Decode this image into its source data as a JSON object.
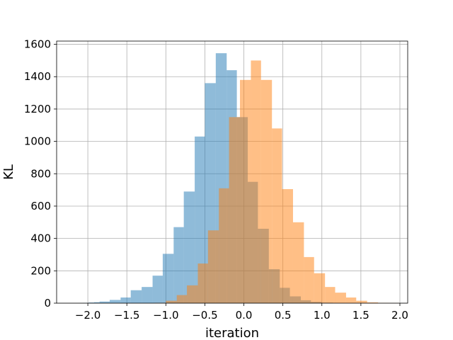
{
  "chart_data": {
    "type": "bar",
    "xlabel": "iteration",
    "ylabel": "KL",
    "xlim": [
      -2.4,
      2.1
    ],
    "ylim": [
      0,
      1620
    ],
    "grid": true,
    "x_ticks": [
      -2.0,
      -1.5,
      -1.0,
      -0.5,
      0.0,
      0.5,
      1.0,
      1.5,
      2.0
    ],
    "x_tick_labels": [
      "−2.0",
      "−1.5",
      "−1.0",
      "−0.5",
      "0.0",
      "0.5",
      "1.0",
      "1.5",
      "2.0"
    ],
    "y_ticks": [
      0,
      200,
      400,
      600,
      800,
      1000,
      1200,
      1400,
      1600
    ],
    "y_tick_labels": [
      "0",
      "200",
      "400",
      "600",
      "800",
      "1000",
      "1200",
      "1400",
      "1600"
    ],
    "series": [
      {
        "color": "#1f77b4",
        "opacity": 0.5,
        "bins": [
          [
            -2.13,
            -2.06,
            1
          ],
          [
            -2.06,
            -1.99,
            2
          ],
          [
            -1.99,
            -1.92,
            4
          ],
          [
            -1.92,
            -1.85,
            6
          ],
          [
            -1.85,
            -1.72,
            10
          ],
          [
            -1.72,
            -1.58,
            20
          ],
          [
            -1.58,
            -1.45,
            35
          ],
          [
            -1.45,
            -1.31,
            80
          ],
          [
            -1.31,
            -1.17,
            100
          ],
          [
            -1.17,
            -1.04,
            170
          ],
          [
            -1.04,
            -0.9,
            305
          ],
          [
            -0.9,
            -0.77,
            470
          ],
          [
            -0.77,
            -0.63,
            690
          ],
          [
            -0.63,
            -0.5,
            1030
          ],
          [
            -0.5,
            -0.36,
            1360
          ],
          [
            -0.36,
            -0.22,
            1545
          ],
          [
            -0.22,
            -0.09,
            1440
          ],
          [
            -0.09,
            0.05,
            1150
          ],
          [
            0.05,
            0.18,
            750
          ],
          [
            0.18,
            0.32,
            460
          ],
          [
            0.32,
            0.46,
            210
          ],
          [
            0.46,
            0.59,
            95
          ],
          [
            0.59,
            0.73,
            42
          ],
          [
            0.73,
            0.86,
            18
          ],
          [
            0.86,
            1.0,
            8
          ],
          [
            1.0,
            1.14,
            3
          ]
        ]
      },
      {
        "color": "#ff7f0e",
        "opacity": 0.5,
        "bins": [
          [
            -1.14,
            -1.0,
            2
          ],
          [
            -1.0,
            -0.86,
            15
          ],
          [
            -0.86,
            -0.73,
            50
          ],
          [
            -0.73,
            -0.59,
            110
          ],
          [
            -0.59,
            -0.46,
            245
          ],
          [
            -0.46,
            -0.32,
            450
          ],
          [
            -0.32,
            -0.19,
            710
          ],
          [
            -0.19,
            -0.05,
            1150
          ],
          [
            -0.05,
            0.09,
            1380
          ],
          [
            0.09,
            0.22,
            1500
          ],
          [
            0.22,
            0.36,
            1380
          ],
          [
            0.36,
            0.49,
            1080
          ],
          [
            0.49,
            0.63,
            705
          ],
          [
            0.63,
            0.77,
            500
          ],
          [
            0.77,
            0.9,
            285
          ],
          [
            0.9,
            1.04,
            185
          ],
          [
            1.04,
            1.17,
            100
          ],
          [
            1.17,
            1.31,
            65
          ],
          [
            1.31,
            1.44,
            35
          ],
          [
            1.44,
            1.58,
            15
          ],
          [
            1.58,
            1.72,
            5
          ],
          [
            1.72,
            1.85,
            2
          ],
          [
            1.85,
            1.99,
            1
          ]
        ]
      }
    ]
  }
}
